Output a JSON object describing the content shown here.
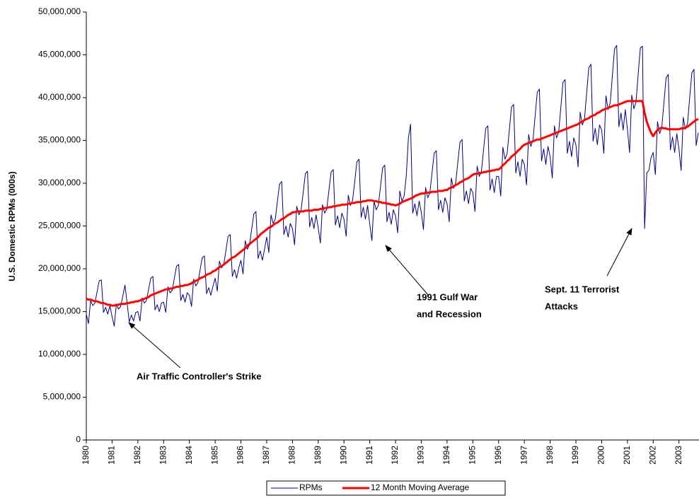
{
  "chart_data": {
    "type": "line",
    "y_label": "U.S. Domestic RPMs (000s)",
    "categories": [
      "1980",
      null,
      null,
      null,
      null,
      null,
      null,
      null,
      null,
      null,
      null,
      null,
      "1981",
      null,
      null,
      null,
      null,
      null,
      null,
      null,
      null,
      null,
      null,
      null,
      "1982",
      null,
      null,
      null,
      null,
      null,
      null,
      null,
      null,
      null,
      null,
      null,
      "1983",
      null,
      null,
      null,
      null,
      null,
      null,
      null,
      null,
      null,
      null,
      null,
      "1984",
      null,
      null,
      null,
      null,
      null,
      null,
      null,
      null,
      null,
      null,
      null,
      "1985",
      null,
      null,
      null,
      null,
      null,
      null,
      null,
      null,
      null,
      null,
      null,
      "1986",
      null,
      null,
      null,
      null,
      null,
      null,
      null,
      null,
      null,
      null,
      null,
      "1987",
      null,
      null,
      null,
      null,
      null,
      null,
      null,
      null,
      null,
      null,
      null,
      "1988",
      null,
      null,
      null,
      null,
      null,
      null,
      null,
      null,
      null,
      null,
      null,
      "1989",
      null,
      null,
      null,
      null,
      null,
      null,
      null,
      null,
      null,
      null,
      null,
      "1990",
      null,
      null,
      null,
      null,
      null,
      null,
      null,
      null,
      null,
      null,
      null,
      "1991",
      null,
      null,
      null,
      null,
      null,
      null,
      null,
      null,
      null,
      null,
      null,
      "1992",
      null,
      null,
      null,
      null,
      null,
      null,
      null,
      null,
      null,
      null,
      null,
      "1993",
      null,
      null,
      null,
      null,
      null,
      null,
      null,
      null,
      null,
      null,
      null,
      "1994",
      null,
      null,
      null,
      null,
      null,
      null,
      null,
      null,
      null,
      null,
      null,
      "1995",
      null,
      null,
      null,
      null,
      null,
      null,
      null,
      null,
      null,
      null,
      null,
      "1996",
      null,
      null,
      null,
      null,
      null,
      null,
      null,
      null,
      null,
      null,
      null,
      "1997",
      null,
      null,
      null,
      null,
      null,
      null,
      null,
      null,
      null,
      null,
      null,
      "1998",
      null,
      null,
      null,
      null,
      null,
      null,
      null,
      null,
      null,
      null,
      null,
      "1999",
      null,
      null,
      null,
      null,
      null,
      null,
      null,
      null,
      null,
      null,
      null,
      "2000",
      null,
      null,
      null,
      null,
      null,
      null,
      null,
      null,
      null,
      null,
      null,
      "2001",
      null,
      null,
      null,
      null,
      null,
      null,
      null,
      null,
      null,
      null,
      null,
      "2002",
      null,
      null,
      null,
      null,
      null,
      null,
      null,
      null,
      null,
      null,
      null,
      "2003",
      null,
      null,
      null,
      null,
      null,
      null,
      null,
      null,
      null
    ],
    "series": [
      {
        "name": "RPMs",
        "color": "#000080",
        "width": 1,
        "values": [
          14700000,
          13600000,
          16300000,
          15700000,
          16000000,
          17300000,
          18600000,
          18700000,
          14900000,
          15500000,
          14700000,
          15700000,
          14400000,
          13300000,
          15900000,
          15300000,
          15600000,
          16800000,
          18100000,
          16000000,
          13800000,
          14600000,
          13900000,
          14900000,
          15000000,
          13900000,
          16600000,
          16000000,
          16300000,
          17600000,
          18900000,
          19100000,
          15200000,
          15800000,
          15000000,
          16000000,
          16100000,
          14900000,
          17900000,
          17200000,
          17500000,
          18900000,
          20300000,
          20500000,
          16300000,
          17000000,
          16100000,
          17200000,
          16900000,
          15600000,
          18800000,
          18000000,
          18400000,
          19900000,
          21300000,
          21500000,
          17100000,
          17800000,
          16900000,
          18000000,
          18900000,
          17400000,
          20900000,
          20100000,
          20500000,
          22100000,
          23800000,
          24000000,
          19100000,
          19900000,
          18900000,
          20100000,
          21000000,
          19400000,
          23300000,
          22300000,
          22800000,
          24600000,
          26400000,
          26700000,
          21200000,
          22100000,
          21000000,
          22300000,
          23700000,
          21900000,
          26300000,
          25300000,
          25800000,
          27900000,
          29900000,
          30200000,
          24000000,
          25000000,
          23700000,
          25300000,
          24700000,
          22800000,
          27300000,
          26300000,
          26800000,
          28900000,
          31100000,
          31400000,
          24900000,
          26000000,
          24700000,
          26300000,
          24800000,
          23000000,
          27500000,
          26500000,
          27000000,
          29200000,
          31300000,
          31600000,
          25100000,
          26200000,
          24800000,
          26500000,
          25800000,
          23800000,
          28600000,
          27400000,
          28000000,
          30200000,
          32500000,
          32800000,
          26000000,
          27200000,
          25800000,
          27400000,
          25200000,
          23300000,
          27900000,
          26900000,
          27400000,
          29600000,
          31800000,
          32100000,
          25500000,
          26600000,
          25200000,
          26900000,
          26200000,
          24200000,
          29100000,
          27900000,
          28500000,
          30800000,
          35300000,
          36900000,
          26500000,
          27600000,
          26200000,
          27900000,
          26600000,
          24600000,
          29500000,
          28300000,
          28900000,
          31200000,
          33500000,
          33800000,
          26900000,
          28000000,
          26600000,
          28300000,
          27600000,
          25500000,
          30600000,
          29400000,
          30000000,
          32400000,
          34800000,
          35100000,
          27900000,
          29100000,
          27600000,
          29400000,
          28900000,
          26700000,
          32000000,
          30800000,
          31400000,
          33900000,
          36400000,
          36700000,
          29200000,
          30500000,
          28900000,
          30800000,
          30800000,
          28500000,
          34200000,
          32800000,
          33500000,
          36200000,
          38900000,
          39200000,
          31200000,
          32500000,
          30800000,
          32800000,
          32200000,
          29800000,
          35700000,
          34300000,
          35000000,
          37800000,
          40600000,
          41000000,
          32600000,
          34000000,
          32200000,
          34300000,
          33100000,
          30600000,
          36700000,
          35300000,
          36000000,
          38900000,
          41800000,
          42100000,
          33500000,
          34900000,
          33100000,
          35300000,
          34500000,
          31900000,
          38300000,
          36800000,
          37500000,
          40500000,
          43500000,
          43900000,
          34900000,
          36400000,
          34500000,
          36800000,
          36200000,
          33500000,
          40200000,
          38600000,
          39400000,
          42600000,
          45700000,
          46100000,
          36600000,
          38200000,
          36200000,
          38600000,
          36300000,
          33600000,
          40300000,
          38700000,
          39500000,
          42700000,
          45800000,
          46000000,
          24700000,
          31200000,
          31500000,
          33000000,
          33600000,
          31000000,
          37200000,
          35800000,
          36500000,
          39400000,
          42300000,
          42700000,
          33900000,
          35400000,
          33600000,
          35800000,
          34000000,
          31500000,
          37700000,
          36300000,
          37000000,
          40000000,
          42900000,
          43300000,
          34400000,
          35900000
        ]
      },
      {
        "name": "12 Month Moving Average",
        "color": "#ff0000",
        "width": 3,
        "values": [
          16500000,
          16400000,
          16400000,
          16300000,
          16200000,
          16200000,
          16100000,
          16000000,
          16000000,
          15900000,
          15800000,
          15800000,
          15700000,
          15700000,
          15800000,
          15800000,
          15900000,
          15900000,
          15900000,
          16000000,
          16000000,
          16100000,
          16100000,
          16200000,
          16200000,
          16300000,
          16400000,
          16500000,
          16600000,
          16700000,
          16900000,
          17000000,
          17100000,
          17200000,
          17300000,
          17400000,
          17500000,
          17600000,
          17600000,
          17700000,
          17700000,
          17800000,
          17900000,
          17900000,
          18000000,
          18000000,
          18100000,
          18100000,
          18200000,
          18300000,
          18500000,
          18600000,
          18700000,
          18900000,
          19000000,
          19100000,
          19300000,
          19400000,
          19500000,
          19700000,
          19800000,
          20000000,
          20200000,
          20300000,
          20500000,
          20700000,
          20900000,
          21100000,
          21300000,
          21400000,
          21600000,
          21800000,
          22000000,
          22200000,
          22400000,
          22700000,
          22900000,
          23100000,
          23300000,
          23500000,
          23700000,
          24000000,
          24200000,
          24400000,
          24600000,
          24800000,
          24900000,
          25100000,
          25300000,
          25400000,
          25600000,
          25800000,
          25900000,
          26100000,
          26300000,
          26400000,
          26600000,
          26600000,
          26700000,
          26700000,
          26700000,
          26700000,
          26800000,
          26800000,
          26800000,
          26800000,
          26900000,
          26900000,
          26900000,
          27000000,
          27000000,
          27100000,
          27100000,
          27200000,
          27200000,
          27300000,
          27300000,
          27400000,
          27400000,
          27500000,
          27500000,
          27500000,
          27600000,
          27600000,
          27700000,
          27700000,
          27800000,
          27800000,
          27800000,
          27900000,
          27900000,
          28000000,
          28000000,
          28000000,
          27900000,
          27900000,
          27800000,
          27800000,
          27700000,
          27700000,
          27600000,
          27600000,
          27500000,
          27500000,
          27400000,
          27500000,
          27600000,
          27800000,
          27900000,
          28000000,
          28100000,
          28200000,
          28300000,
          28500000,
          28600000,
          28700000,
          28800000,
          28800000,
          28900000,
          28900000,
          28900000,
          29000000,
          29000000,
          29000000,
          29100000,
          29100000,
          29100000,
          29200000,
          29200000,
          29400000,
          29500000,
          29600000,
          29800000,
          29900000,
          30100000,
          30200000,
          30400000,
          30500000,
          30600000,
          30800000,
          31000000,
          31100000,
          31100000,
          31200000,
          31200000,
          31300000,
          31300000,
          31400000,
          31400000,
          31500000,
          31500000,
          31600000,
          31600000,
          31800000,
          32100000,
          32300000,
          32600000,
          32800000,
          33100000,
          33300000,
          33500000,
          33800000,
          34000000,
          34300000,
          34500000,
          34600000,
          34700000,
          34800000,
          34900000,
          35000000,
          35100000,
          35100000,
          35200000,
          35300000,
          35400000,
          35500000,
          35600000,
          35700000,
          35800000,
          35900000,
          36000000,
          36100000,
          36200000,
          36300000,
          36400000,
          36500000,
          36600000,
          36700000,
          36800000,
          36900000,
          37100000,
          37200000,
          37400000,
          37500000,
          37600000,
          37800000,
          37900000,
          38000000,
          38200000,
          38300000,
          38500000,
          38600000,
          38700000,
          38800000,
          38900000,
          39000000,
          39100000,
          39100000,
          39200000,
          39300000,
          39400000,
          39500000,
          39600000,
          39600000,
          39600000,
          39600000,
          39600000,
          39600000,
          39600000,
          39600000,
          38200000,
          37200000,
          36500000,
          35900000,
          35500000,
          35900000,
          36200000,
          36400000,
          36500000,
          36400000,
          36400000,
          36300000,
          36300000,
          36300000,
          36300000,
          36300000,
          36300000,
          36400000,
          36400000,
          36500000,
          36600000,
          36800000,
          37000000,
          37200000,
          37400000,
          37500000
        ]
      }
    ],
    "ylim": [
      0,
      50000000
    ],
    "yticks": [
      0,
      {
        "value": 5000000,
        "label": "5,000,000"
      },
      {
        "value": 10000000,
        "label": "10,000,000"
      },
      {
        "value": 15000000,
        "label": "15,000,000"
      },
      {
        "value": 20000000,
        "label": "20,000,000"
      },
      {
        "value": 25000000,
        "label": "25,000,000"
      },
      {
        "value": 30000000,
        "label": "30,000,000"
      },
      {
        "value": 35000000,
        "label": "35,000,000"
      },
      {
        "value": 40000000,
        "label": "40,000,000"
      },
      {
        "value": 45000000,
        "label": "45,000,000"
      },
      {
        "value": 50000000,
        "label": "50,000,000"
      }
    ],
    "grid": false,
    "legend": "bottom",
    "annotations": [
      {
        "lines": [
          "Air Traffic Controller's Strike"
        ]
      },
      {
        "lines": [
          "1991 Gulf War",
          "and Recession"
        ]
      },
      {
        "lines": [
          "Sept. 11 Terrorist",
          "Attacks"
        ]
      }
    ]
  }
}
